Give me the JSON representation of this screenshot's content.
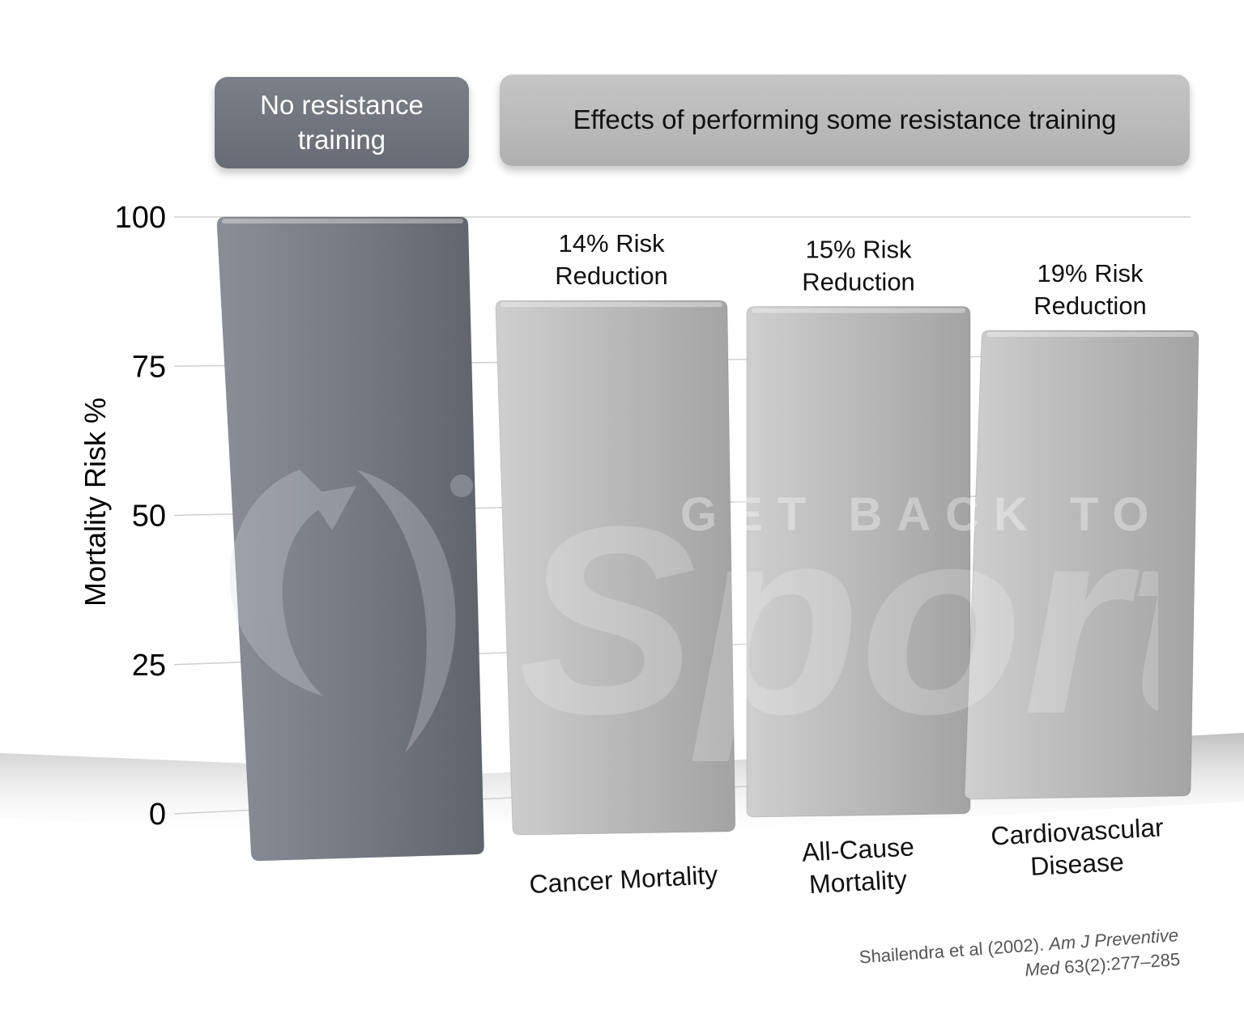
{
  "header": {
    "no_training_line1": "No resistance",
    "no_training_line2": "training",
    "some_training": "Effects of performing some resistance training"
  },
  "citation": {
    "authors": "Shailendra et al (2002). ",
    "journal_part1": "Am J Preventive",
    "journal_part2": "Med",
    "volume_pages": " 63(2):277–285"
  },
  "watermark": {
    "small_text": "GET BACK TO",
    "large_text": "Sport"
  },
  "colors": {
    "dark_bar": "#71767e",
    "light_bar": "#b7b7b7",
    "gridline": "#cfcfcf"
  },
  "chart_data": {
    "type": "bar",
    "ylabel": "Mortality Risk %",
    "ylim": [
      0,
      100
    ],
    "yticks": [
      0,
      25,
      50,
      75,
      100
    ],
    "grid": true,
    "categories": [
      {
        "lines": []
      },
      {
        "lines": [
          "Cancer Mortality"
        ]
      },
      {
        "lines": [
          "All-Cause",
          "Mortality"
        ]
      },
      {
        "lines": [
          "Cardiovascular",
          "Disease"
        ]
      }
    ],
    "values": [
      100,
      86,
      85,
      81
    ],
    "bar_labels": [
      [],
      [
        "14% Risk",
        "Reduction"
      ],
      [
        "15% Risk",
        "Reduction"
      ],
      [
        "19% Risk",
        "Reduction"
      ]
    ],
    "bar_colors": [
      "#71767e",
      "#b7b7b7",
      "#b7b7b7",
      "#b7b7b7"
    ]
  }
}
